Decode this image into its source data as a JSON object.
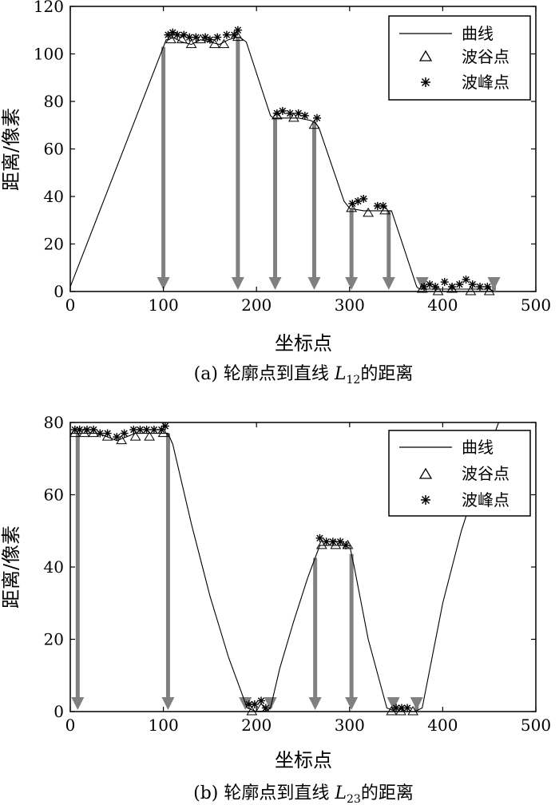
{
  "chart_data": [
    {
      "type": "line",
      "caption_prefix": "(a) 轮廓点到直线 ",
      "caption_var": "L",
      "caption_sub": "12",
      "caption_suffix": "的距离",
      "xlabel": "坐标点",
      "ylabel": "距离/像素",
      "xlim": [
        0,
        500
      ],
      "ylim": [
        0,
        120
      ],
      "xticks": [
        0,
        100,
        200,
        300,
        400,
        500
      ],
      "yticks": [
        0,
        20,
        40,
        60,
        80,
        100,
        120
      ],
      "legend": {
        "position": "top-right",
        "entries": [
          "曲线",
          "波谷点",
          "波峰点"
        ]
      },
      "series": [
        {
          "name": "曲线",
          "x": [
            0,
            103,
            106,
            110,
            120,
            130,
            140,
            150,
            160,
            170,
            178,
            182,
            189,
            215,
            218,
            230,
            245,
            258,
            263,
            267,
            294,
            300,
            315,
            330,
            345,
            372,
            375,
            390,
            405,
            420,
            435,
            450,
            455
          ],
          "y": [
            2,
            106,
            106,
            107,
            105,
            104,
            106,
            105,
            104,
            106,
            107,
            107,
            105,
            74,
            73,
            73,
            73,
            72,
            71,
            69,
            38,
            35,
            34,
            34,
            34,
            2,
            1,
            1,
            1,
            1,
            1,
            1,
            0
          ]
        },
        {
          "name": "波谷点",
          "x": [
            108,
            120,
            130,
            140,
            155,
            165,
            180,
            222,
            240,
            262,
            302,
            320,
            338,
            378,
            395,
            410,
            430,
            450
          ],
          "y": [
            106,
            106,
            104,
            106,
            104,
            104,
            107,
            74,
            73,
            70,
            35,
            33,
            34,
            1,
            0,
            1,
            0,
            0
          ]
        },
        {
          "name": "波峰点",
          "x": [
            105,
            110,
            115,
            122,
            128,
            135,
            145,
            150,
            158,
            168,
            176,
            180,
            222,
            228,
            236,
            245,
            252,
            265,
            303,
            309,
            315,
            330,
            336,
            380,
            386,
            392,
            402,
            410,
            418,
            425,
            432,
            440,
            448
          ],
          "y": [
            108,
            109,
            108,
            108,
            107,
            107,
            107,
            106,
            107,
            108,
            108,
            110,
            75,
            76,
            75,
            75,
            74,
            73,
            37,
            38,
            39,
            36,
            36,
            2,
            3,
            2,
            4,
            2,
            3,
            5,
            3,
            2,
            2
          ]
        }
      ],
      "arrows_x": [
        100,
        180,
        220,
        262,
        302,
        342,
        378,
        455
      ]
    },
    {
      "type": "line",
      "caption_prefix": "(b) 轮廓点到直线 ",
      "caption_var": "L",
      "caption_sub": "23",
      "caption_suffix": "的距离",
      "xlabel": "坐标点",
      "ylabel": "距离/像素",
      "xlim": [
        0,
        500
      ],
      "ylim": [
        0,
        80
      ],
      "xticks": [
        0,
        100,
        200,
        300,
        400,
        500
      ],
      "yticks": [
        0,
        20,
        40,
        60,
        80
      ],
      "legend": {
        "position": "top-right",
        "entries": [
          "曲线",
          "波谷点",
          "波峰点"
        ]
      },
      "series": [
        {
          "name": "曲线",
          "x": [
            0,
            4,
            10,
            20,
            30,
            40,
            50,
            60,
            70,
            80,
            90,
            100,
            105,
            110,
            130,
            150,
            170,
            190,
            200,
            210,
            215,
            225,
            240,
            255,
            268,
            275,
            285,
            295,
            300,
            305,
            320,
            340,
            350,
            360,
            370,
            378,
            400,
            420,
            440,
            460
          ],
          "y": [
            77,
            77,
            77,
            77,
            77,
            76,
            75,
            76,
            77,
            77,
            77,
            77,
            77,
            74,
            52,
            32,
            15,
            1,
            0,
            0,
            1,
            12,
            25,
            37,
            46,
            46,
            46,
            46,
            46,
            40,
            20,
            1,
            0,
            0,
            0,
            1,
            30,
            50,
            66,
            80
          ]
        },
        {
          "name": "波谷点",
          "x": [
            5,
            15,
            25,
            40,
            55,
            70,
            85,
            100,
            195,
            205,
            270,
            285,
            298,
            345,
            355,
            368
          ],
          "y": [
            77,
            77,
            77,
            76,
            75,
            76,
            76,
            77,
            0,
            1,
            46,
            46,
            46,
            0,
            0,
            0
          ],
          "value_is_y": true
        },
        {
          "name": "波峰点",
          "x": [
            5,
            10,
            18,
            25,
            32,
            40,
            50,
            58,
            68,
            75,
            82,
            90,
            98,
            102,
            192,
            198,
            205,
            210,
            268,
            275,
            282,
            290,
            296,
            350,
            356,
            362
          ],
          "y": [
            78,
            78,
            78,
            78,
            77,
            77,
            76,
            77,
            78,
            78,
            78,
            78,
            78,
            79,
            2,
            2,
            3,
            1,
            48,
            47,
            47,
            47,
            46,
            1,
            1,
            1
          ]
        }
      ],
      "arrows_x": [
        8,
        105,
        188,
        215,
        263,
        302,
        347,
        372
      ]
    }
  ]
}
